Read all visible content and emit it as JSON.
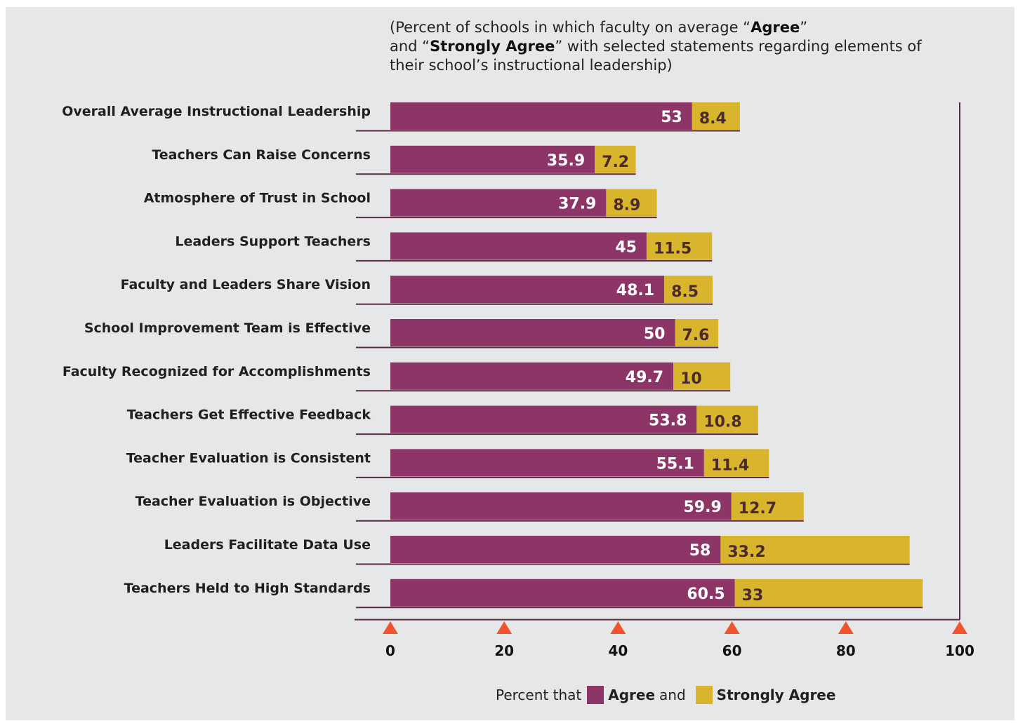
{
  "subtitle": {
    "p1": "(Percent of schools in which faculty on average “",
    "b1": "Agree",
    "p2": "”",
    "p3": "and “",
    "b2": "Strongly Agree",
    "p4": "” with selected statements regarding elements of",
    "p5": "their school’s instructional leadership)"
  },
  "legend": {
    "prefix": "Percent that",
    "agree_label": "Agree",
    "connector": "and",
    "strongly_label": "Strongly Agree"
  },
  "colors": {
    "agree": "#8e3568",
    "strongly_agree": "#d9b42d",
    "background": "#e6e7e8",
    "tick_marker": "#f0532e",
    "axis": "#5b2a3f"
  },
  "chart_data": {
    "type": "bar",
    "orientation": "horizontal",
    "stacked": true,
    "categories": [
      "Overall Average Instructional Leadership",
      "Teachers Can Raise Concerns",
      "Atmosphere of Trust in School",
      "Leaders Support Teachers",
      "Faculty and Leaders Share Vision",
      "School Improvement Team is Effective",
      "Faculty Recognized for Accomplishments",
      "Teachers Get Effective Feedback",
      "Teacher Evaluation is Consistent",
      "Teacher Evaluation is Objective",
      "Leaders Facilitate Data Use",
      "Teachers Held to High Standards"
    ],
    "series": [
      {
        "name": "Agree",
        "values": [
          53,
          35.9,
          37.9,
          45,
          48.1,
          50,
          49.7,
          53.8,
          55.1,
          59.9,
          58,
          60.5
        ]
      },
      {
        "name": "Strongly Agree",
        "values": [
          8.4,
          7.2,
          8.9,
          11.5,
          8.5,
          7.6,
          10,
          10.8,
          11.4,
          12.7,
          33.2,
          33
        ]
      }
    ],
    "value_labels": {
      "agree": [
        "53",
        "35.9",
        "37.9",
        "45",
        "48.1",
        "50",
        "49.7",
        "53.8",
        "55.1",
        "59.9",
        "58",
        "60.5"
      ],
      "strongly_agree": [
        "8.4",
        "7.2",
        "8.9",
        "11.5",
        "8.5",
        "7.6",
        "10",
        "10.8",
        "11.4",
        "12.7",
        "33.2",
        "33"
      ]
    },
    "xlim": [
      0,
      100
    ],
    "x_ticks": [
      0,
      20,
      40,
      60,
      80,
      100
    ],
    "x_tick_labels": [
      "0",
      "20",
      "40",
      "60",
      "80",
      "100"
    ],
    "grid": false,
    "legend_position": "bottom"
  }
}
